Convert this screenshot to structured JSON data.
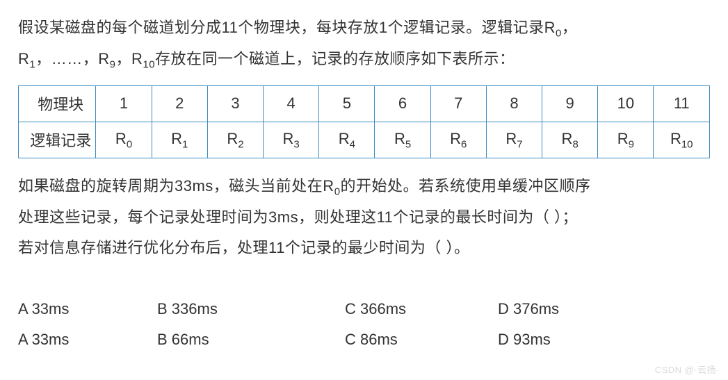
{
  "question": {
    "p1_a": "假设某磁盘的每个磁道划分成11个物理块，每块存放1个逻辑记录。逻辑记录R",
    "p1_b": "，",
    "p2_a": "R",
    "p2_b": "，……，R",
    "p2_c": "，R",
    "p2_d": "存放在同一个磁道上，记录的存放顺序如下表所示：",
    "sub0": "0",
    "sub1": "1",
    "sub9": "9",
    "sub10": "10"
  },
  "table": {
    "row1_head": "物理块",
    "row2_head": "逻辑记录",
    "blocks": [
      "1",
      "2",
      "3",
      "4",
      "5",
      "6",
      "7",
      "8",
      "9",
      "10",
      "11"
    ],
    "records_prefix": "R",
    "records_subs": [
      "0",
      "1",
      "2",
      "3",
      "4",
      "5",
      "6",
      "7",
      "8",
      "9",
      "10"
    ],
    "border_color": "#3b8bbf",
    "font_size": 22
  },
  "question2": {
    "p3_a": "如果磁盘的旋转周期为33ms，磁头当前处在R",
    "p3_b": "的开始处。若系统使用单缓冲区顺序",
    "sub0": "0",
    "p4": "处理这些记录，每个记录处理时间为3ms，则处理这11个记录的最长时间为（  ）；",
    "p5": "若对信息存储进行优化分布后，处理11个记录的最少时间为（  ）。"
  },
  "options": {
    "row1": {
      "A": "A 33ms",
      "B": "B 336ms",
      "C": "C 366ms",
      "D": "D 376ms"
    },
    "row2": {
      "A": "A 33ms",
      "B": "B 66ms",
      "C": "C 86ms",
      "D": "D 93ms"
    }
  },
  "watermark": "CSDN @·云扬·",
  "colors": {
    "background": "#ffffff",
    "text": "#333333",
    "table_border": "#3b8bbf",
    "watermark": "#d9d9d9"
  },
  "typography": {
    "body_font_size": 22,
    "sub_font_size": 15,
    "line_height": 2.0,
    "font_family": "Microsoft YaHei"
  }
}
